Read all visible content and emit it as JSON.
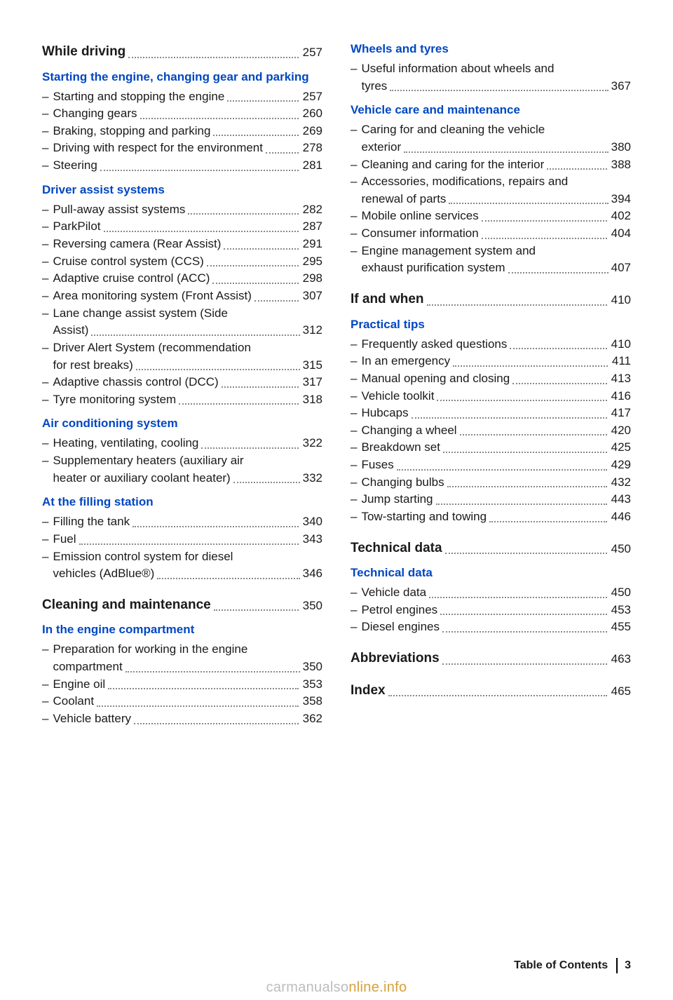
{
  "left": {
    "while_driving": {
      "title": "While driving",
      "page": "257"
    },
    "starting_head": "Starting the engine, changing gear and parking",
    "starting": [
      {
        "label": "Starting and stopping the engine",
        "page": "257"
      },
      {
        "label": "Changing gears",
        "page": "260"
      },
      {
        "label": "Braking, stopping and parking",
        "page": "269"
      },
      {
        "label": "Driving with respect for the environment",
        "page": "278"
      },
      {
        "label": "Steering",
        "page": "281"
      }
    ],
    "driver_head": "Driver assist systems",
    "driver": [
      {
        "label": "Pull-away assist systems",
        "page": "282"
      },
      {
        "label": "ParkPilot",
        "page": "287"
      },
      {
        "label": "Reversing camera (Rear Assist)",
        "page": "291"
      },
      {
        "label": "Cruise control system (CCS)",
        "page": "295"
      },
      {
        "label": "Adaptive cruise control (ACC)",
        "page": "298"
      },
      {
        "label": "Area monitoring system (Front Assist)",
        "page": "307"
      },
      {
        "label": "Lane change assist system (Side Assist)",
        "page": "312",
        "multiline": true,
        "line1": "Lane change assist system (Side",
        "line2": "Assist)"
      },
      {
        "label": "Driver Alert System (recommendation for rest breaks)",
        "page": "315",
        "multiline": true,
        "line1": "Driver Alert System (recommendation",
        "line2": "for rest breaks)"
      },
      {
        "label": "Adaptive chassis control (DCC)",
        "page": "317"
      },
      {
        "label": "Tyre monitoring system",
        "page": "318"
      }
    ],
    "air_head": "Air conditioning system",
    "air": [
      {
        "label": "Heating, ventilating, cooling",
        "page": "322"
      },
      {
        "label": "Supplementary heaters (auxiliary air heater or auxiliary coolant heater)",
        "page": "332",
        "multiline": true,
        "line1": "Supplementary heaters (auxiliary air",
        "line2": "heater or auxiliary coolant heater)"
      }
    ],
    "fill_head": "At the filling station",
    "fill": [
      {
        "label": "Filling the tank",
        "page": "340"
      },
      {
        "label": "Fuel",
        "page": "343"
      },
      {
        "label": "Emission control system for diesel vehicles (AdBlue®)",
        "page": "346",
        "multiline": true,
        "line1": "Emission control system for diesel",
        "line2": "vehicles (AdBlue®)"
      }
    ],
    "cleaning": {
      "title": "Cleaning and maintenance",
      "page": "350"
    },
    "engine_head": "In the engine compartment",
    "engine": [
      {
        "label": "Preparation for working in the engine compartment",
        "page": "350",
        "multiline": true,
        "line1": "Preparation for working in the engine",
        "line2": "compartment"
      },
      {
        "label": "Engine oil",
        "page": "353"
      },
      {
        "label": "Coolant",
        "page": "358"
      },
      {
        "label": "Vehicle battery",
        "page": "362"
      }
    ]
  },
  "right": {
    "wheels_head": "Wheels and tyres",
    "wheels": [
      {
        "label": "Useful information about wheels and tyres",
        "page": "367",
        "multiline": true,
        "line1": "Useful information about wheels and",
        "line2": "tyres"
      }
    ],
    "care_head": "Vehicle care and maintenance",
    "care": [
      {
        "label": "Caring for and cleaning the vehicle exterior",
        "page": "380",
        "multiline": true,
        "line1": "Caring for and cleaning the vehicle",
        "line2": "exterior"
      },
      {
        "label": "Cleaning and caring for the interior",
        "page": "388"
      },
      {
        "label": "Accessories, modifications, repairs and renewal of parts",
        "page": "394",
        "multiline": true,
        "line1": "Accessories, modifications, repairs and",
        "line2": "renewal of parts"
      },
      {
        "label": "Mobile online services",
        "page": "402"
      },
      {
        "label": "Consumer information",
        "page": "404"
      },
      {
        "label": "Engine management system and exhaust purification system",
        "page": "407",
        "multiline": true,
        "line1": "Engine management system and",
        "line2": "exhaust purification system"
      }
    ],
    "ifwhen": {
      "title": "If and when",
      "page": "410"
    },
    "practical_head": "Practical tips",
    "practical": [
      {
        "label": "Frequently asked questions",
        "page": "410"
      },
      {
        "label": "In an emergency",
        "page": "411"
      },
      {
        "label": "Manual opening and closing",
        "page": "413"
      },
      {
        "label": "Vehicle toolkit",
        "page": "416"
      },
      {
        "label": "Hubcaps",
        "page": "417"
      },
      {
        "label": "Changing a wheel",
        "page": "420"
      },
      {
        "label": "Breakdown set",
        "page": "425"
      },
      {
        "label": "Fuses",
        "page": "429"
      },
      {
        "label": "Changing bulbs",
        "page": "432"
      },
      {
        "label": "Jump starting",
        "page": "443"
      },
      {
        "label": "Tow-starting and towing",
        "page": "446"
      }
    ],
    "technical": {
      "title": "Technical data",
      "page": "450"
    },
    "techdata_head": "Technical data",
    "techdata": [
      {
        "label": "Vehicle data",
        "page": "450"
      },
      {
        "label": "Petrol engines",
        "page": "453"
      },
      {
        "label": "Diesel engines",
        "page": "455"
      }
    ],
    "abbrev": {
      "title": "Abbreviations",
      "page": "463"
    },
    "index": {
      "title": "Index",
      "page": "465"
    }
  },
  "footer": {
    "toc": "Table of Contents",
    "page": "3"
  },
  "watermark": {
    "a": "carmanualso",
    "b": "nline.info"
  }
}
